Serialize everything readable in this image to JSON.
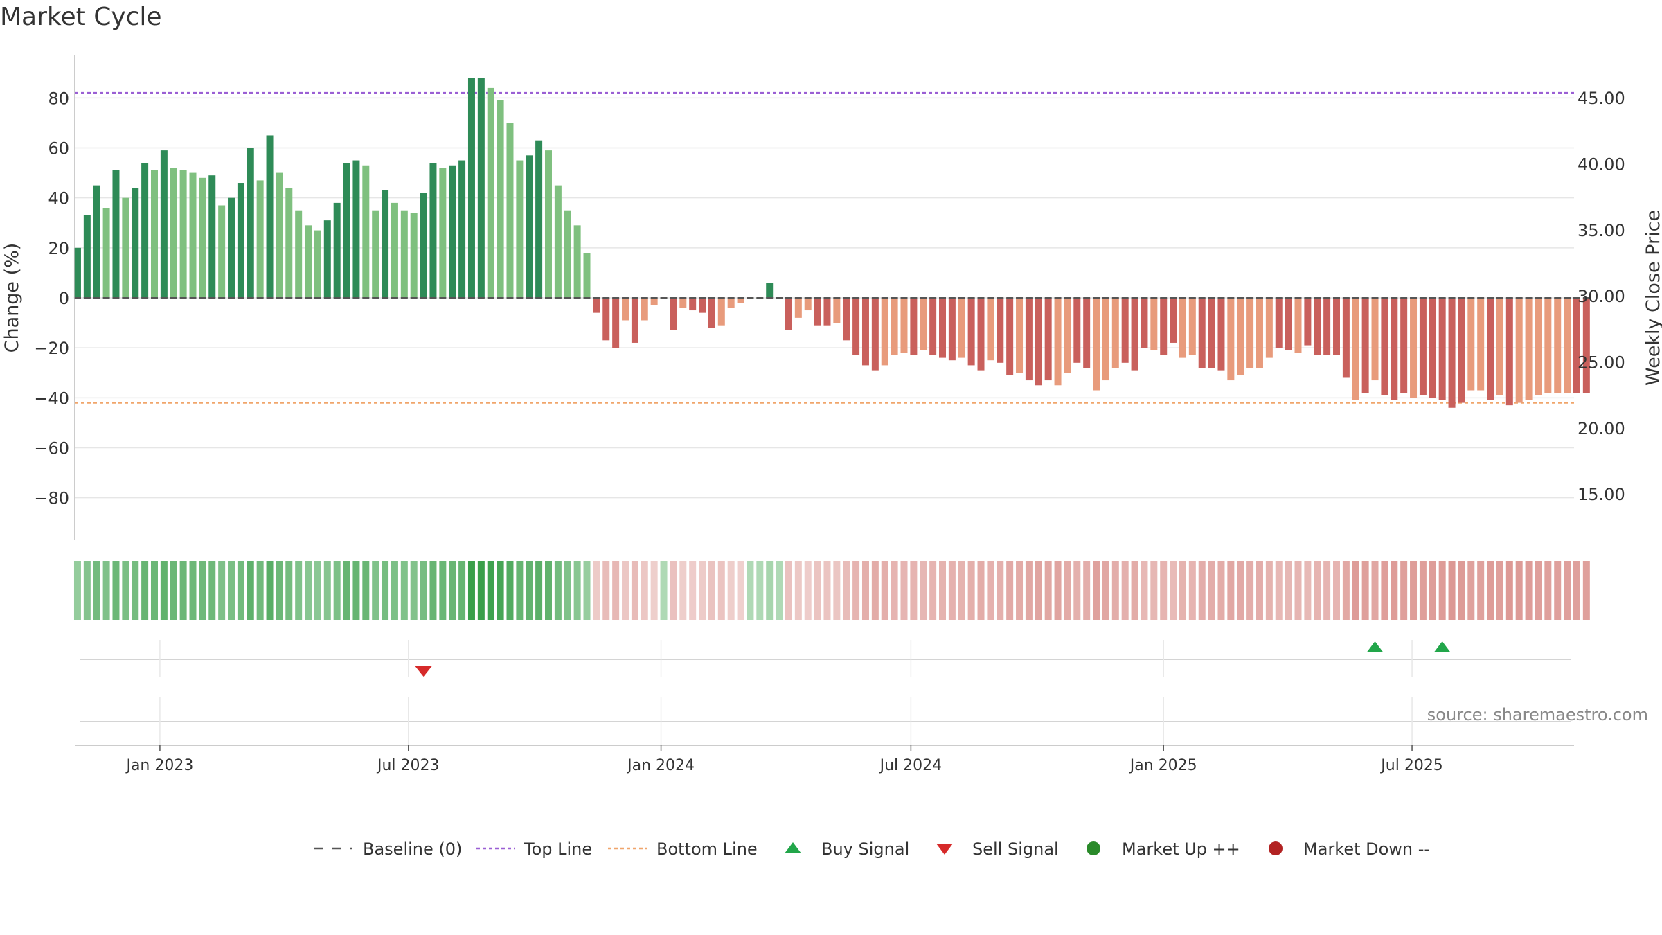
{
  "title": "Market Cycle",
  "source_text": "source: sharemaestro.com",
  "colors": {
    "up_strong": "#2e8b57",
    "up_light": "#7fc07f",
    "down_strong": "#c9605c",
    "down_light": "#e89b7c",
    "top_line": "#9a5fd4",
    "bottom_line": "#f0a56b",
    "baseline": "#555555",
    "buy": "#22a64a",
    "sell": "#d62a2a",
    "market_up": "#2a8a2a",
    "market_down": "#b22222"
  },
  "chart_data": {
    "type": "bar",
    "title": "Market Cycle",
    "ylabel": "Change (%)",
    "y2label": "Weekly Close Price",
    "ylim": [
      -97,
      97
    ],
    "yticks": [
      "80",
      "60",
      "40",
      "20",
      "0",
      "−20",
      "−40",
      "−60",
      "−80"
    ],
    "y2lim": [
      11.5,
      48.2
    ],
    "y2ticks": [
      "45.00",
      "40.00",
      "35.00",
      "30.00",
      "25.00",
      "20.00",
      "15.00"
    ],
    "xlim": [
      "2022-10-31",
      "2025-10-27"
    ],
    "xticks": [
      "Jan 2023",
      "Jul 2023",
      "Jan 2024",
      "Jul 2024",
      "Jan 2025",
      "Jul 2025"
    ],
    "top_line": 82,
    "bottom_line": -42,
    "baseline": 0,
    "bar_start_date": "2022-11-02",
    "bar_interval_days": 7,
    "values": [
      20,
      33,
      45,
      36,
      51,
      40,
      44,
      54,
      51,
      59,
      52,
      51,
      50,
      48,
      49,
      37,
      40,
      46,
      60,
      47,
      65,
      50,
      44,
      35,
      29,
      27,
      31,
      38,
      54,
      55,
      53,
      35,
      43,
      38,
      35,
      34,
      42,
      54,
      52,
      53,
      55,
      88,
      88,
      84,
      79,
      70,
      55,
      57,
      63,
      59,
      45,
      35,
      29,
      18,
      -6,
      -17,
      -20,
      -9,
      -18,
      -9,
      -3,
      0,
      -13,
      -4,
      -5,
      -6,
      -12,
      -11,
      -4,
      -2,
      0,
      0,
      6,
      0,
      -13,
      -8,
      -5,
      -11,
      -11,
      -10,
      -17,
      -23,
      -27,
      -29,
      -27,
      -23,
      -22,
      -23,
      -21,
      -23,
      -24,
      -25,
      -24,
      -27,
      -29,
      -25,
      -26,
      -31,
      -30,
      -33,
      -35,
      -33,
      -35,
      -30,
      -26,
      -28,
      -37,
      -33,
      -28,
      -26,
      -29,
      -20,
      -21,
      -23,
      -18,
      -24,
      -23,
      -28,
      -28,
      -29,
      -33,
      -31,
      -28,
      -28,
      -24,
      -20,
      -21,
      -22,
      -19,
      -23,
      -23,
      -23,
      -32,
      -41,
      -38,
      -33,
      -39,
      -41,
      -38,
      -40,
      -39,
      -40,
      -41,
      -44,
      -42,
      -37,
      -37,
      -41,
      -39,
      -43,
      -42,
      -41,
      -39,
      -38,
      -38,
      -38,
      -38,
      -38
    ],
    "strength": [
      1,
      1,
      1,
      0,
      1,
      0,
      1,
      1,
      0,
      1,
      0,
      0,
      0,
      0,
      1,
      0,
      1,
      1,
      1,
      0,
      1,
      0,
      0,
      0,
      0,
      0,
      1,
      1,
      1,
      1,
      0,
      0,
      1,
      0,
      0,
      0,
      1,
      1,
      0,
      1,
      1,
      1,
      1,
      0,
      0,
      0,
      0,
      1,
      1,
      0,
      0,
      0,
      0,
      0,
      1,
      1,
      1,
      0,
      1,
      0,
      0,
      0,
      1,
      0,
      1,
      1,
      1,
      0,
      0,
      0,
      0,
      0,
      1,
      0,
      1,
      0,
      0,
      1,
      1,
      0,
      1,
      1,
      1,
      1,
      0,
      0,
      0,
      1,
      0,
      1,
      1,
      1,
      0,
      1,
      1,
      0,
      1,
      1,
      0,
      1,
      1,
      1,
      0,
      0,
      1,
      1,
      0,
      0,
      0,
      1,
      1,
      1,
      0,
      1,
      1,
      0,
      0,
      1,
      1,
      1,
      0,
      0,
      0,
      0,
      0,
      1,
      1,
      0,
      1,
      1,
      1,
      1,
      1,
      0,
      1,
      0,
      1,
      1,
      1,
      0,
      1,
      1,
      1,
      1,
      1,
      0,
      0,
      1,
      0,
      1,
      0,
      0,
      0,
      0,
      0,
      0,
      1,
      1
    ],
    "buy_signals": [
      "2025-06-04",
      "2025-07-23"
    ],
    "sell_signals": [
      "2023-07-12"
    ],
    "legend": [
      "Baseline (0)",
      "Top Line",
      "Bottom Line",
      "Buy Signal",
      "Sell Signal",
      "Market Up ++",
      "Market Down --"
    ],
    "legend_position": "bottom-center",
    "grid": true
  }
}
